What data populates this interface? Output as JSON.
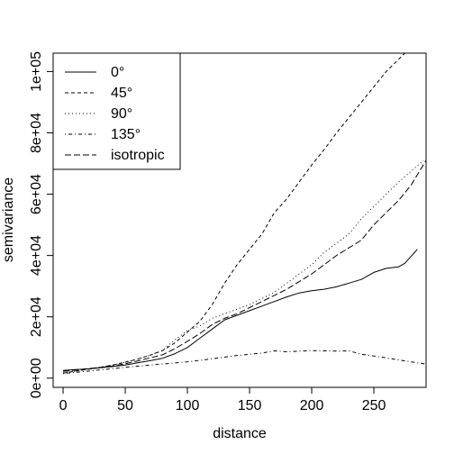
{
  "chart_data": {
    "type": "line",
    "title": "",
    "xlabel": "distance",
    "ylabel": "semivariance",
    "xlim": [
      -8,
      292
    ],
    "ylim": [
      -3000,
      106000
    ],
    "x_ticks": [
      0,
      50,
      100,
      150,
      200,
      250
    ],
    "x_tick_labels": [
      "0",
      "50",
      "100",
      "150",
      "200",
      "250"
    ],
    "y_ticks": [
      0,
      20000,
      40000,
      60000,
      80000,
      100000
    ],
    "y_tick_labels": [
      "0e+00",
      "2e+04",
      "4e+04",
      "6e+04",
      "8e+04",
      "1e+05"
    ],
    "grid": false,
    "legend_position": "top-left",
    "series": [
      {
        "name": "0°",
        "line_style": "solid",
        "color": "#000000",
        "x": [
          0,
          10,
          20,
          30,
          40,
          50,
          60,
          70,
          80,
          90,
          100,
          110,
          120,
          130,
          140,
          150,
          160,
          170,
          180,
          190,
          200,
          210,
          220,
          230,
          240,
          250,
          260,
          270,
          275,
          285
        ],
        "y": [
          2500,
          2800,
          3000,
          3400,
          3800,
          4300,
          5000,
          5700,
          6500,
          8000,
          10000,
          13000,
          16000,
          19000,
          20500,
          22000,
          23500,
          25000,
          26500,
          27800,
          28500,
          29000,
          29800,
          31000,
          32200,
          34500,
          35800,
          36300,
          37500,
          42000
        ]
      },
      {
        "name": "45°",
        "line_style": "dashed",
        "color": "#000000",
        "x": [
          0,
          10,
          20,
          30,
          40,
          50,
          60,
          70,
          80,
          90,
          100,
          110,
          120,
          130,
          140,
          150,
          160,
          170,
          180,
          190,
          200,
          210,
          220,
          230,
          240,
          250,
          260,
          270,
          280,
          290
        ],
        "y": [
          1600,
          2300,
          2900,
          3500,
          4300,
          5200,
          6200,
          7500,
          9000,
          11500,
          15000,
          18500,
          24000,
          31000,
          37000,
          42000,
          47000,
          54000,
          58500,
          64000,
          69500,
          74500,
          80000,
          85000,
          90000,
          95000,
          100000,
          104000,
          108000,
          112000
        ]
      },
      {
        "name": "90°",
        "line_style": "dotted",
        "color": "#000000",
        "x": [
          0,
          10,
          20,
          30,
          40,
          50,
          60,
          70,
          80,
          90,
          100,
          110,
          120,
          130,
          140,
          150,
          160,
          170,
          180,
          190,
          200,
          210,
          220,
          230,
          240,
          250,
          260,
          270,
          280,
          290
        ],
        "y": [
          1700,
          2300,
          3000,
          3600,
          4300,
          5200,
          6200,
          7500,
          9000,
          12500,
          15500,
          17000,
          19500,
          21000,
          22500,
          24000,
          26000,
          28000,
          31000,
          34000,
          37000,
          41000,
          44000,
          47000,
          52000,
          56000,
          60000,
          64000,
          67500,
          71000
        ]
      },
      {
        "name": "135°",
        "line_style": "dotdash",
        "color": "#000000",
        "x": [
          0,
          20,
          40,
          60,
          80,
          100,
          120,
          140,
          160,
          170,
          180,
          200,
          220,
          230,
          240,
          260,
          280,
          292
        ],
        "y": [
          1500,
          2300,
          3100,
          3900,
          4600,
          5300,
          6300,
          7400,
          8200,
          8900,
          8600,
          9000,
          8800,
          8900,
          7800,
          6600,
          5300,
          4600
        ]
      },
      {
        "name": "isotropic",
        "line_style": "longdash",
        "color": "#000000",
        "x": [
          0,
          10,
          20,
          30,
          40,
          50,
          60,
          70,
          80,
          90,
          100,
          110,
          120,
          130,
          140,
          150,
          160,
          170,
          180,
          190,
          200,
          210,
          220,
          230,
          240,
          250,
          260,
          270,
          280,
          292
        ],
        "y": [
          2200,
          2600,
          3100,
          3500,
          4000,
          4700,
          5600,
          6600,
          7600,
          9600,
          12000,
          14500,
          17500,
          19500,
          21000,
          23000,
          25000,
          27000,
          29000,
          31500,
          34000,
          37000,
          40000,
          42500,
          45000,
          50000,
          54000,
          58000,
          63000,
          71000
        ]
      }
    ]
  }
}
